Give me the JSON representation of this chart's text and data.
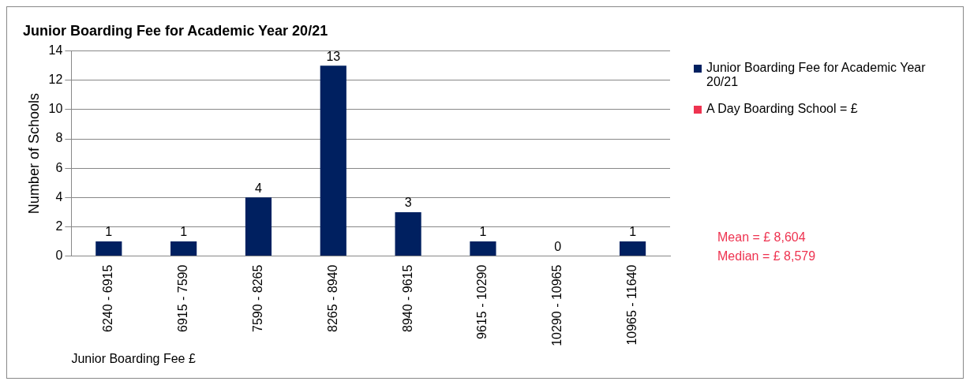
{
  "chart_data": {
    "type": "bar",
    "title": "Junior Boarding Fee for Academic Year 20/21",
    "xlabel": "Junior Boarding Fee £",
    "ylabel": "Number of Schools",
    "categories": [
      "6240 - 6915",
      "6915 - 7590",
      "7590 - 8265",
      "8265 - 8940",
      "8940 - 9615",
      "9615 - 10290",
      "10290 - 10965",
      "10965 - 11640"
    ],
    "series": [
      {
        "name": "Junior Boarding Fee for Academic Year 20/21",
        "color": "#002060",
        "values": [
          1,
          1,
          4,
          13,
          3,
          1,
          0,
          1
        ]
      },
      {
        "name": "A Day Boarding School = £",
        "color": "#ee3350",
        "values": [
          null,
          null,
          null,
          null,
          null,
          null,
          null,
          null
        ]
      }
    ],
    "ylim": [
      0,
      14
    ],
    "yticks": [
      0,
      2,
      4,
      6,
      8,
      10,
      12,
      14
    ],
    "grid": "y",
    "legend": "right",
    "data_labels": true,
    "annotations": [
      "Mean = £ 8,604",
      "Median = £ 8,579"
    ]
  }
}
